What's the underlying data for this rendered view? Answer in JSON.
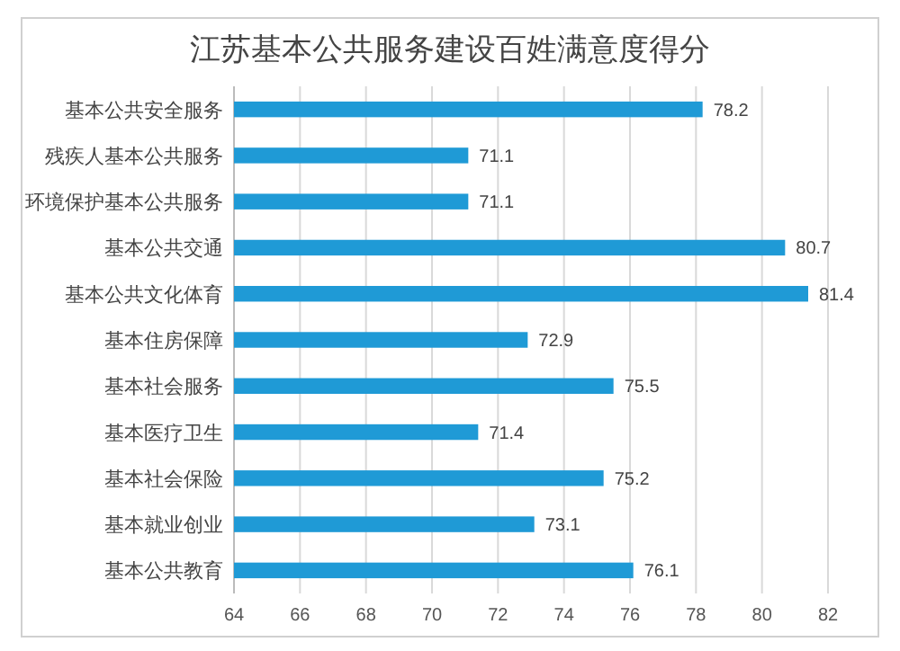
{
  "chart_data": {
    "type": "bar",
    "orientation": "horizontal",
    "title": "江苏基本公共服务建设百姓满意度得分",
    "categories": [
      "基本公共安全服务",
      "残疾人基本公共服务",
      "环境保护基本公共服务",
      "基本公共交通",
      "基本公共文化体育",
      "基本住房保障",
      "基本社会服务",
      "基本医疗卫生",
      "基本社会保险",
      "基本就业创业",
      "基本公共教育"
    ],
    "values": [
      78.2,
      71.1,
      71.1,
      80.7,
      81.4,
      72.9,
      75.5,
      71.4,
      75.2,
      73.1,
      76.1
    ],
    "color": "#1f9ad6",
    "xlim": [
      64,
      82
    ],
    "xticks": [
      64,
      66,
      68,
      70,
      72,
      74,
      76,
      78,
      80,
      82
    ],
    "grid": "x",
    "data_labels": true
  }
}
